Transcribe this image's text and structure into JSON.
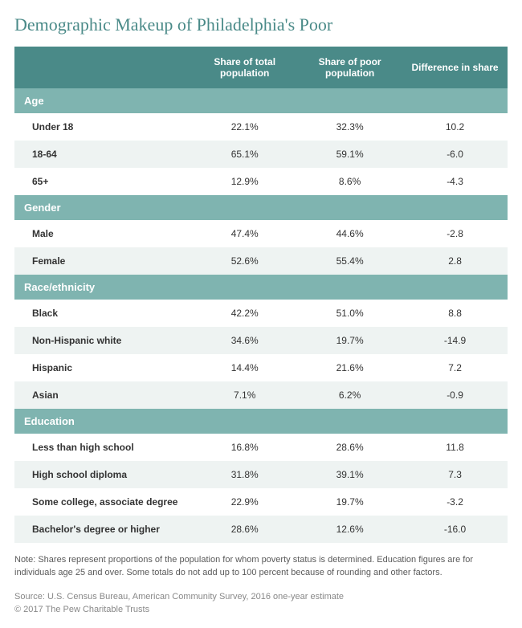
{
  "title": "Demographic Makeup of Philadelphia's Poor",
  "colors": {
    "title_text": "#4a8a88",
    "header_bg": "#4a8a88",
    "header_text": "#ffffff",
    "section_bg": "#7fb4b0",
    "section_text": "#ffffff",
    "row_odd_bg": "#ffffff",
    "row_even_bg": "#eef3f2",
    "note_text": "#5a5a5a",
    "source_text": "#888888"
  },
  "columns": [
    "",
    "Share of total population",
    "Share of poor population",
    "Difference in share"
  ],
  "sections": [
    {
      "name": "Age",
      "rows": [
        {
          "label": "Under 18",
          "total": "22.1%",
          "poor": "32.3%",
          "diff": "10.2"
        },
        {
          "label": "18-64",
          "total": "65.1%",
          "poor": "59.1%",
          "diff": "-6.0"
        },
        {
          "label": "65+",
          "total": "12.9%",
          "poor": "8.6%",
          "diff": "-4.3"
        }
      ]
    },
    {
      "name": "Gender",
      "rows": [
        {
          "label": "Male",
          "total": "47.4%",
          "poor": "44.6%",
          "diff": "-2.8"
        },
        {
          "label": "Female",
          "total": "52.6%",
          "poor": "55.4%",
          "diff": "2.8"
        }
      ]
    },
    {
      "name": "Race/ethnicity",
      "rows": [
        {
          "label": "Black",
          "total": "42.2%",
          "poor": "51.0%",
          "diff": "8.8"
        },
        {
          "label": "Non-Hispanic white",
          "total": "34.6%",
          "poor": "19.7%",
          "diff": "-14.9"
        },
        {
          "label": "Hispanic",
          "total": "14.4%",
          "poor": "21.6%",
          "diff": "7.2"
        },
        {
          "label": "Asian",
          "total": "7.1%",
          "poor": "6.2%",
          "diff": "-0.9"
        }
      ]
    },
    {
      "name": "Education",
      "rows": [
        {
          "label": "Less than high school",
          "total": "16.8%",
          "poor": "28.6%",
          "diff": "11.8"
        },
        {
          "label": "High school diploma",
          "total": "31.8%",
          "poor": "39.1%",
          "diff": "7.3"
        },
        {
          "label": "Some college, associate degree",
          "total": "22.9%",
          "poor": "19.7%",
          "diff": "-3.2"
        },
        {
          "label": "Bachelor's degree or higher",
          "total": "28.6%",
          "poor": "12.6%",
          "diff": "-16.0"
        }
      ]
    }
  ],
  "note": "Note: Shares represent proportions of the population for whom poverty status is determined. Education figures are for individuals age 25 and over. Some totals do not add up to 100 percent because of rounding and other factors.",
  "source_line1": "Source: U.S. Census Bureau, American Community Survey, 2016 one-year estimate",
  "source_line2": "© 2017 The Pew Charitable Trusts"
}
